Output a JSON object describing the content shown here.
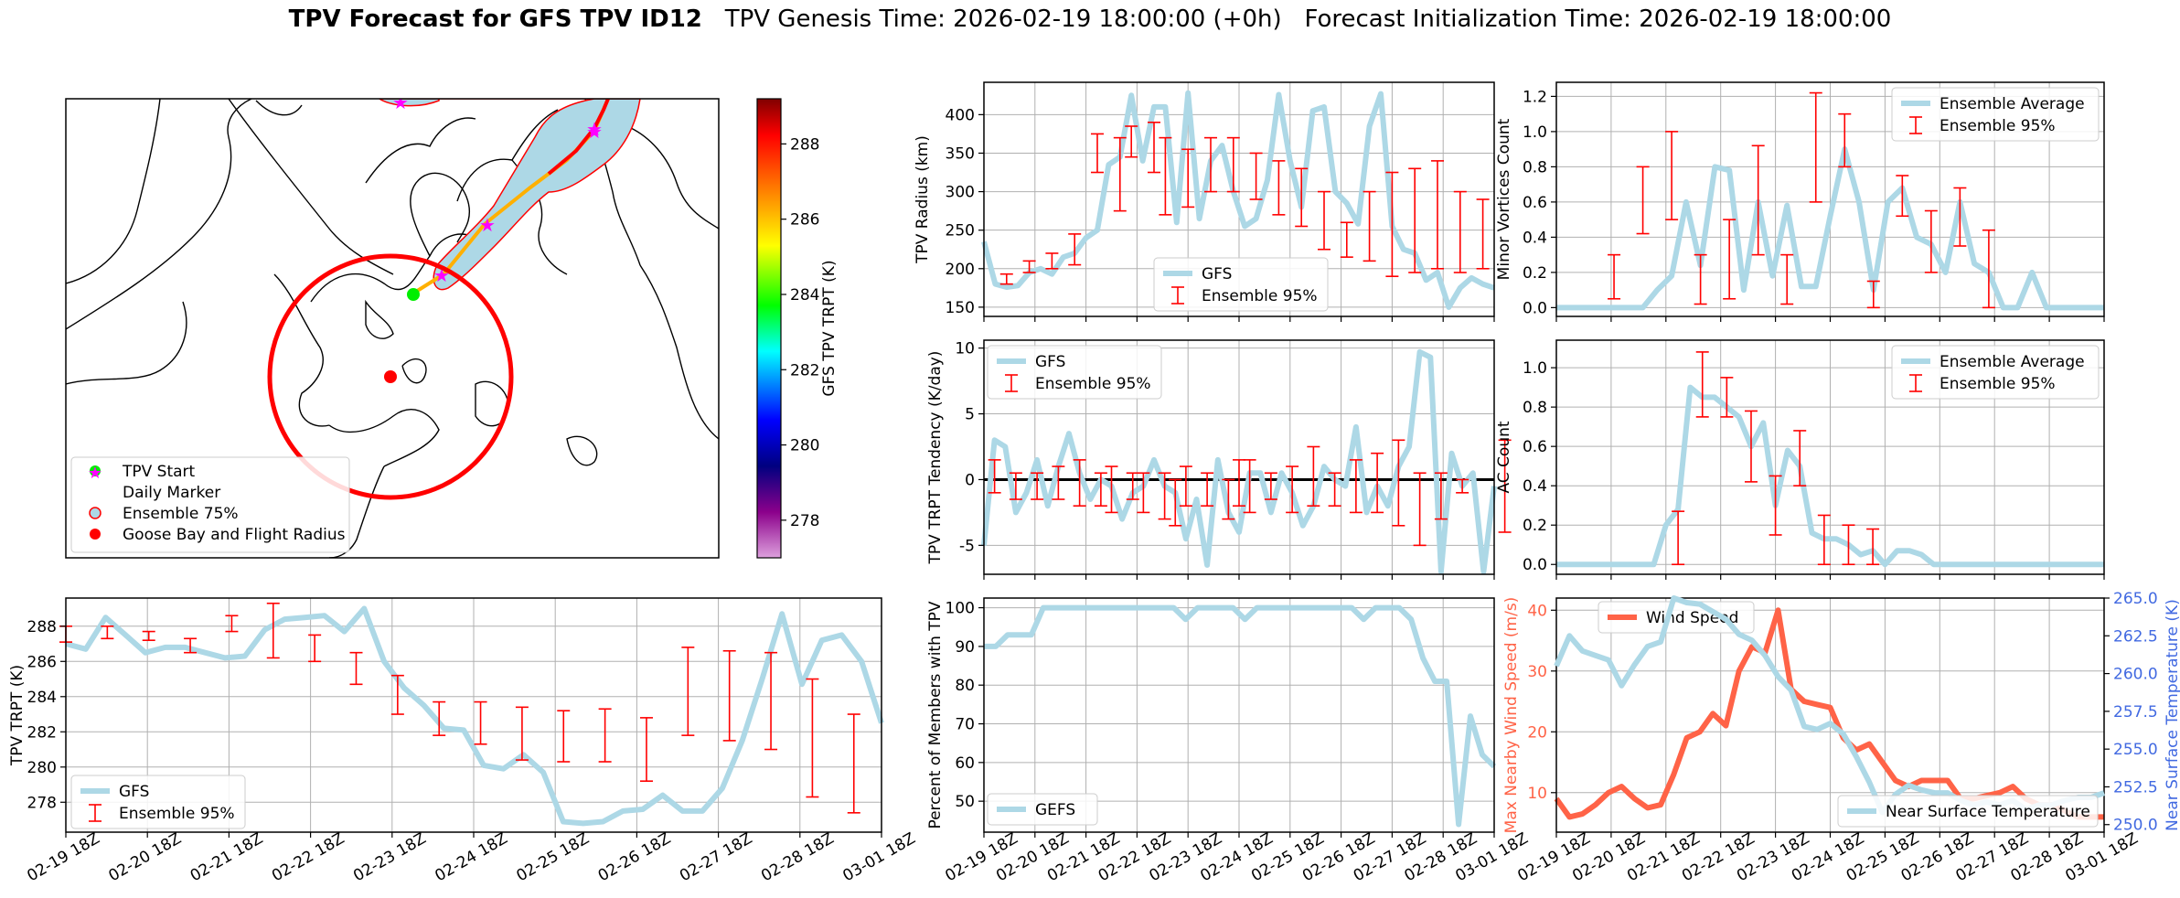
{
  "title": {
    "bold": "TPV Forecast for GFS TPV ID12",
    "genesis": "TPV Genesis Time: 2026-02-19 18:00:00 (+0h)",
    "init": "Forecast Initialization Time: 2026-02-19 18:00:00"
  },
  "colors": {
    "light_blue": "#add8e6",
    "red": "#ff0000",
    "wind": "#ff6347",
    "temp_axis": "#4169e1",
    "grid": "#b0b0b0"
  },
  "map": {
    "legend": [
      "TPV Start",
      "Daily Marker",
      "Ensemble 75%",
      "Goose Bay and Flight Radius"
    ],
    "colorbar": {
      "label": "GFS TPV TRPT (K)",
      "ticks": [
        278,
        280,
        282,
        284,
        286,
        288
      ],
      "range": [
        277,
        289.2
      ]
    }
  },
  "chart_data": [
    {
      "id": "radius",
      "type": "line",
      "ylabel": "TPV Radius (km)",
      "ylim": [
        138,
        442
      ],
      "yticks": [
        150,
        200,
        250,
        300,
        350,
        400
      ],
      "legend": [
        "GFS",
        "Ensemble 95%"
      ],
      "legend_position": "lower center",
      "series_y": [
        235,
        180,
        176,
        178,
        195,
        200,
        193,
        215,
        220,
        240,
        250,
        335,
        345,
        425,
        340,
        410,
        410,
        260,
        428,
        265,
        340,
        360,
        300,
        255,
        265,
        315,
        426,
        340,
        280,
        405,
        410,
        300,
        285,
        258,
        385,
        427,
        255,
        225,
        220,
        185,
        195,
        150,
        175,
        188,
        180,
        175
      ],
      "errbars": [
        [
          2,
          193,
          180
        ],
        [
          4,
          210,
          195
        ],
        [
          6,
          220,
          200
        ],
        [
          8,
          245,
          205
        ],
        [
          10,
          375,
          325
        ],
        [
          12,
          370,
          275
        ],
        [
          13,
          385,
          345
        ],
        [
          15,
          390,
          325
        ],
        [
          16,
          370,
          270
        ],
        [
          18,
          355,
          280
        ],
        [
          20,
          370,
          300
        ],
        [
          22,
          370,
          300
        ],
        [
          24,
          350,
          290
        ],
        [
          26,
          340,
          270
        ],
        [
          28,
          330,
          255
        ],
        [
          30,
          300,
          225
        ],
        [
          32,
          260,
          215
        ],
        [
          34,
          300,
          210
        ],
        [
          36,
          325,
          190
        ],
        [
          38,
          330,
          195
        ],
        [
          40,
          340,
          200
        ],
        [
          42,
          300,
          195
        ],
        [
          44,
          290,
          200
        ]
      ]
    },
    {
      "id": "minor",
      "type": "line",
      "ylabel": "Minor Vortices Count",
      "ylim": [
        -0.05,
        1.28
      ],
      "yticks": [
        0.0,
        0.2,
        0.4,
        0.6,
        0.8,
        1.0,
        1.2
      ],
      "legend": [
        "Ensemble Average",
        "Ensemble 95%"
      ],
      "legend_position": "upper right",
      "series_y": [
        0,
        0,
        0,
        0,
        0,
        0,
        0,
        0.1,
        0.18,
        0.6,
        0.24,
        0.8,
        0.78,
        0.1,
        0.6,
        0.18,
        0.58,
        0.12,
        0.12,
        0.52,
        0.9,
        0.6,
        0.1,
        0.6,
        0.68,
        0.4,
        0.36,
        0.2,
        0.6,
        0.25,
        0.2,
        0.0,
        0.0,
        0.2,
        0.0,
        0.0,
        0.0,
        0.0,
        0.0
      ],
      "errbars": [
        [
          4,
          0.3,
          0.05
        ],
        [
          6,
          0.8,
          0.42
        ],
        [
          8,
          1.0,
          0.5
        ],
        [
          10,
          0.3,
          0.02
        ],
        [
          12,
          0.5,
          0.05
        ],
        [
          14,
          0.92,
          0.3
        ],
        [
          16,
          0.3,
          0.02
        ],
        [
          18,
          1.22,
          0.6
        ],
        [
          20,
          1.1,
          0.8
        ],
        [
          22,
          0.15,
          0.0
        ],
        [
          24,
          0.75,
          0.52
        ],
        [
          26,
          0.55,
          0.2
        ],
        [
          28,
          0.68,
          0.35
        ],
        [
          30,
          0.44,
          0.0
        ]
      ]
    },
    {
      "id": "tendency",
      "type": "line",
      "ylabel": "TPV TRPT Tendency (K/day)",
      "ylim": [
        -7.2,
        10.6
      ],
      "yticks": [
        -5,
        0,
        5,
        10
      ],
      "legend": [
        "GFS",
        "Ensemble 95%"
      ],
      "legend_position": "upper left",
      "zero_line": true,
      "series_y": [
        -5,
        3,
        2.5,
        -2.5,
        -1,
        1.5,
        -2,
        1,
        3.5,
        0.5,
        -1.5,
        0,
        -0.5,
        -3,
        -1,
        -0.5,
        1.5,
        -0.5,
        -1,
        -4.5,
        -1.5,
        -6.5,
        1.5,
        -2.5,
        -4,
        0.5,
        0.5,
        -2.5,
        0.5,
        -1,
        -3.5,
        -2,
        1,
        0,
        -0.5,
        4,
        -2.5,
        -0.5,
        -2,
        1,
        2.5,
        9.7,
        9.3,
        -7,
        2,
        -0.5,
        0.5,
        -7,
        -0.5
      ],
      "errbars": [
        [
          1,
          1.5,
          -1
        ],
        [
          3,
          0.5,
          -1.5
        ],
        [
          5,
          0.5,
          -1.5
        ],
        [
          7,
          1,
          -1.5
        ],
        [
          9,
          1.5,
          -2
        ],
        [
          11,
          0.5,
          -2
        ],
        [
          12,
          1,
          -2.5
        ],
        [
          14,
          0.5,
          -1.5
        ],
        [
          15,
          0.5,
          -2.5
        ],
        [
          17,
          0.5,
          -3
        ],
        [
          18,
          0,
          -3.5
        ],
        [
          19,
          1,
          -2
        ],
        [
          21,
          0.5,
          -2
        ],
        [
          23,
          0,
          -3
        ],
        [
          24,
          1.5,
          -2
        ],
        [
          25,
          1.5,
          -2.5
        ],
        [
          27,
          0.5,
          -1.5
        ],
        [
          29,
          1,
          -2.5
        ],
        [
          31,
          2.5,
          -2
        ],
        [
          33,
          0.5,
          -2
        ],
        [
          35,
          1.5,
          -2.5
        ],
        [
          37,
          2,
          -2.5
        ],
        [
          39,
          3,
          -3.5
        ],
        [
          41,
          0.5,
          -5
        ],
        [
          43,
          0.5,
          -3
        ],
        [
          45,
          0,
          -1
        ],
        [
          49,
          3,
          -4
        ]
      ]
    },
    {
      "id": "ac",
      "type": "line",
      "ylabel": "AC Count",
      "ylim": [
        -0.05,
        1.14
      ],
      "yticks": [
        0.0,
        0.2,
        0.4,
        0.6,
        0.8,
        1.0
      ],
      "legend": [
        "Ensemble Average",
        "Ensemble 95%"
      ],
      "legend_position": "upper right",
      "series_y": [
        0,
        0,
        0,
        0,
        0,
        0,
        0,
        0,
        0,
        0.2,
        0.28,
        0.9,
        0.85,
        0.85,
        0.8,
        0.75,
        0.6,
        0.72,
        0.3,
        0.58,
        0.5,
        0.16,
        0.13,
        0.13,
        0.1,
        0.05,
        0.07,
        0.0,
        0.07,
        0.07,
        0.05,
        0.0,
        0.0,
        0.0,
        0.0,
        0.0,
        0.0,
        0.0,
        0.0,
        0.0,
        0.0,
        0.0,
        0.0,
        0.0,
        0.0,
        0.0
      ],
      "errbars": [
        [
          10,
          0.27,
          0.0
        ],
        [
          12,
          1.08,
          0.75
        ],
        [
          14,
          0.95,
          0.75
        ],
        [
          16,
          0.78,
          0.42
        ],
        [
          18,
          0.45,
          0.15
        ],
        [
          20,
          0.68,
          0.4
        ],
        [
          22,
          0.25,
          0.0
        ],
        [
          24,
          0.2,
          0.0
        ],
        [
          26,
          0.18,
          0.0
        ]
      ]
    },
    {
      "id": "trpt",
      "type": "line",
      "ylabel": "TPV TRPT (K)",
      "ylim": [
        276.3,
        289.6
      ],
      "yticks": [
        278,
        280,
        282,
        284,
        286,
        288
      ],
      "legend": [
        "GFS",
        "Ensemble 95%"
      ],
      "legend_position": "lower left",
      "series_y": [
        287,
        286.7,
        288.5,
        287.5,
        286.5,
        286.8,
        286.8,
        286.5,
        286.2,
        286.3,
        287.8,
        288.4,
        288.5,
        288.6,
        287.7,
        289,
        286,
        284.5,
        283.5,
        282.2,
        282.1,
        280.1,
        279.9,
        280.7,
        279.7,
        276.9,
        276.8,
        276.9,
        277.5,
        277.6,
        278.4,
        277.5,
        277.5,
        278.8,
        281.5,
        285,
        288.7,
        284.7,
        287.2,
        287.5,
        286,
        282.5
      ],
      "errbars": [
        [
          0,
          288,
          287.1
        ],
        [
          3,
          288,
          287.3
        ],
        [
          6,
          287.7,
          287.2
        ],
        [
          9,
          287.3,
          286.5
        ],
        [
          12,
          288.6,
          287.7
        ],
        [
          15,
          289.3,
          286.2
        ],
        [
          18,
          287.5,
          286
        ],
        [
          21,
          286.5,
          284.7
        ],
        [
          24,
          285.2,
          283
        ],
        [
          27,
          283.7,
          281.8
        ],
        [
          30,
          283.7,
          281.3
        ],
        [
          33,
          283.4,
          280.4
        ],
        [
          36,
          283.2,
          280.3
        ],
        [
          39,
          283.3,
          280.3
        ],
        [
          42,
          282.8,
          279.2
        ],
        [
          45,
          286.8,
          281.8
        ],
        [
          48,
          286.6,
          281.5
        ],
        [
          51,
          286.5,
          281
        ],
        [
          54,
          285,
          278.3
        ],
        [
          57,
          283,
          277.4
        ]
      ]
    },
    {
      "id": "percent",
      "type": "line",
      "ylabel": "Percent of Members with TPV",
      "ylim": [
        42,
        102.5
      ],
      "yticks": [
        50,
        60,
        70,
        80,
        90,
        100
      ],
      "legend": [
        "GEFS"
      ],
      "legend_position": "lower left",
      "series_y": [
        90,
        90,
        93,
        93,
        93,
        100,
        100,
        100,
        100,
        100,
        100,
        100,
        100,
        100,
        100,
        100,
        100,
        97,
        100,
        100,
        100,
        100,
        97,
        100,
        100,
        100,
        100,
        100,
        100,
        100,
        100,
        100,
        97,
        100,
        100,
        100,
        97,
        87,
        81,
        81,
        44,
        72,
        62,
        59
      ]
    },
    {
      "id": "wind_temp",
      "type": "line",
      "ylabel_left": "Max Nearby Wind Speed (m/s)",
      "ylabel_right": "Near Surface Temperature (K)",
      "ylim_left": [
        3.5,
        42
      ],
      "yticks_left": [
        10,
        20,
        30,
        40
      ],
      "ylim_right": [
        249.5,
        265
      ],
      "yticks_right": [
        250.0,
        252.5,
        255.0,
        257.5,
        260.0,
        262.5,
        265.0
      ],
      "legend_left": "Wind Speed",
      "legend_right": "Near Surface Temperature",
      "wind_y": [
        9,
        6,
        6.5,
        8,
        10,
        11,
        9,
        7.5,
        8,
        13,
        19,
        20,
        23,
        21,
        30,
        34,
        33,
        40,
        27,
        25,
        24.5,
        24,
        19,
        17,
        18,
        15,
        12,
        11,
        12,
        12,
        12,
        9,
        9,
        9.5,
        10,
        11,
        9,
        8,
        8,
        7,
        6,
        6,
        6
      ],
      "temp_y": [
        260.5,
        262.5,
        261.5,
        261.2,
        260.9,
        259.2,
        260.6,
        261.8,
        262.1,
        265,
        264.7,
        264.6,
        264.1,
        263.6,
        262.6,
        262.2,
        261.2,
        259.8,
        258.9,
        256.5,
        256.3,
        256.7,
        256,
        254.5,
        252.8,
        250.8,
        252,
        252.6,
        252.3,
        252.1,
        252.1,
        251.6,
        251.3,
        251.5,
        251.3,
        251.6,
        251,
        251.3,
        251.3,
        251.6,
        251.8,
        251.8,
        252.1
      ]
    }
  ],
  "xaxis": {
    "ticks": [
      "02-19 18Z",
      "02-20 18Z",
      "02-21 18Z",
      "02-22 18Z",
      "02-23 18Z",
      "02-24 18Z",
      "02-25 18Z",
      "02-26 18Z",
      "02-27 18Z",
      "02-28 18Z",
      "03-01 18Z"
    ]
  }
}
